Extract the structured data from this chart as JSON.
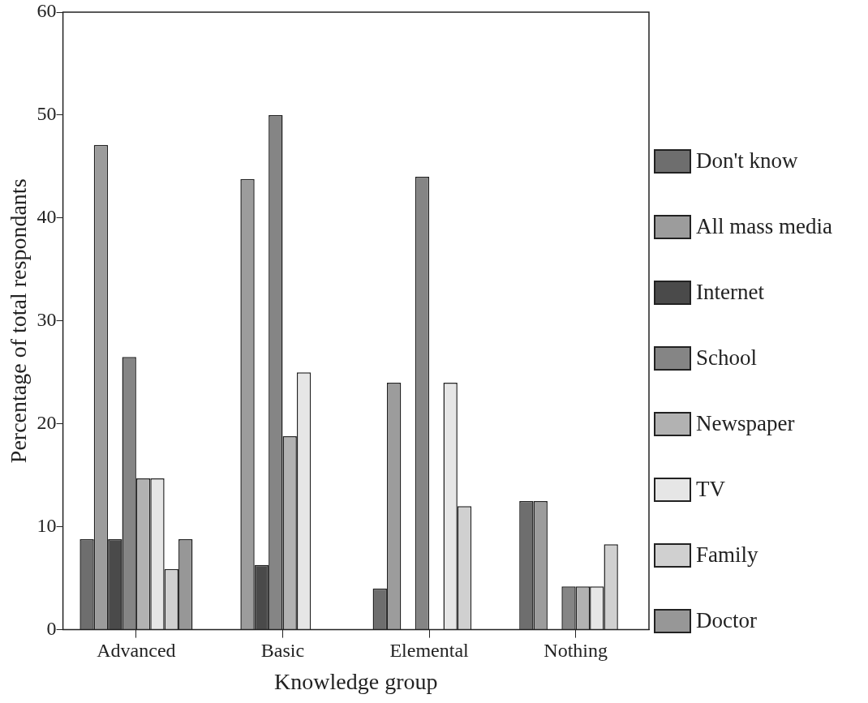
{
  "chart_data": {
    "type": "bar",
    "xlabel": "Knowledge group",
    "ylabel": "Percentage of total respondants",
    "categories": [
      "Advanced",
      "Basic",
      "Elemental",
      "Nothing"
    ],
    "series": [
      {
        "name": "Don't know",
        "color": "#6e6e6e",
        "values": [
          8.8,
          null,
          4,
          12.5
        ]
      },
      {
        "name": "All mass media",
        "color": "#9c9c9c",
        "values": [
          47.1,
          43.8,
          24,
          12.5
        ]
      },
      {
        "name": "Internet",
        "color": "#4a4a4a",
        "values": [
          8.8,
          6.3,
          null,
          null
        ]
      },
      {
        "name": "School",
        "color": "#858585",
        "values": [
          26.5,
          50,
          44,
          4.2
        ]
      },
      {
        "name": "Newspaper",
        "color": "#b2b2b2",
        "values": [
          14.7,
          18.8,
          null,
          4.2
        ]
      },
      {
        "name": "TV",
        "color": "#e6e6e6",
        "values": [
          14.7,
          25,
          24,
          4.2
        ]
      },
      {
        "name": "Family",
        "color": "#d0d0d0",
        "values": [
          5.9,
          null,
          12,
          8.3
        ]
      },
      {
        "name": "Doctor",
        "color": "#979797",
        "values": [
          8.8,
          null,
          null,
          null
        ]
      }
    ],
    "ylim": [
      0,
      60
    ],
    "yticks": [
      0,
      10,
      20,
      30,
      40,
      50,
      60
    ],
    "grid": false,
    "legend": "right"
  }
}
